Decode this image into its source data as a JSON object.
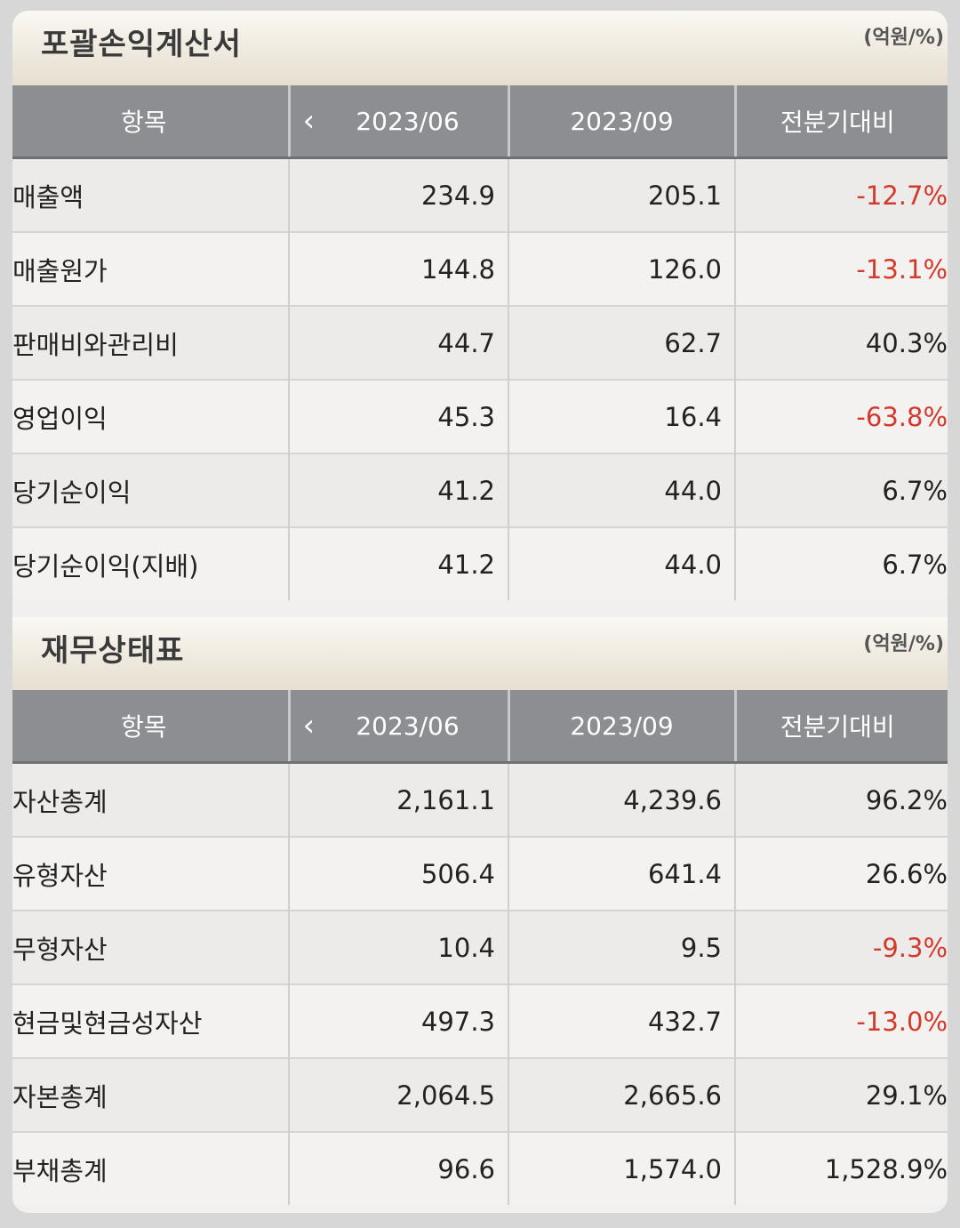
{
  "income": {
    "title": "포괄손익계산서",
    "unit": "(억원/%)",
    "header": {
      "item": "항목",
      "prev": "2023/06",
      "curr": "2023/09",
      "change": "전분기대비"
    },
    "rows": [
      {
        "name": "매출액",
        "prev": "234.9",
        "curr": "205.1",
        "change": "-12.7%",
        "negative": true
      },
      {
        "name": "매출원가",
        "prev": "144.8",
        "curr": "126.0",
        "change": "-13.1%",
        "negative": true
      },
      {
        "name": "판매비와관리비",
        "prev": "44.7",
        "curr": "62.7",
        "change": "40.3%",
        "negative": false
      },
      {
        "name": "영업이익",
        "prev": "45.3",
        "curr": "16.4",
        "change": "-63.8%",
        "negative": true
      },
      {
        "name": "당기순이익",
        "prev": "41.2",
        "curr": "44.0",
        "change": "6.7%",
        "negative": false
      },
      {
        "name": "당기순이익(지배)",
        "prev": "41.2",
        "curr": "44.0",
        "change": "6.7%",
        "negative": false
      }
    ]
  },
  "balance": {
    "title": "재무상태표",
    "unit": "(억원/%)",
    "header": {
      "item": "항목",
      "prev": "2023/06",
      "curr": "2023/09",
      "change": "전분기대비"
    },
    "rows": [
      {
        "name": "자산총계",
        "prev": "2,161.1",
        "curr": "4,239.6",
        "change": "96.2%",
        "negative": false
      },
      {
        "name": "유형자산",
        "prev": "506.4",
        "curr": "641.4",
        "change": "26.6%",
        "negative": false
      },
      {
        "name": "무형자산",
        "prev": "10.4",
        "curr": "9.5",
        "change": "-9.3%",
        "negative": true
      },
      {
        "name": "현금및현금성자산",
        "prev": "497.3",
        "curr": "432.7",
        "change": "-13.0%",
        "negative": true
      },
      {
        "name": "자본총계",
        "prev": "2,064.5",
        "curr": "2,665.6",
        "change": "29.1%",
        "negative": false
      },
      {
        "name": "부채총계",
        "prev": "96.6",
        "curr": "1,574.0",
        "change": "1,528.9%",
        "negative": false
      }
    ]
  },
  "icons": {
    "prev_arrow": "chevron-left-icon",
    "next_arrow": "chevron-right-icon"
  },
  "colors": {
    "negative": "#d33a2c",
    "header_bg": "#8d8e91"
  }
}
